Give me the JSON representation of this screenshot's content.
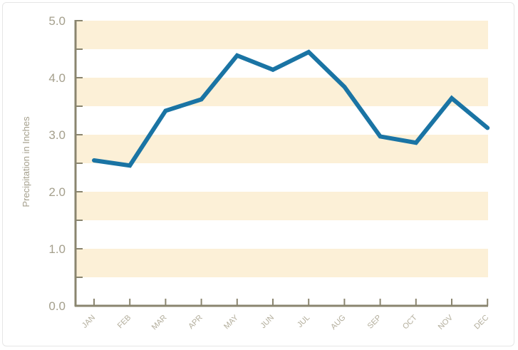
{
  "chart_data": {
    "type": "line",
    "title": "",
    "xlabel": "",
    "ylabel": "Precipitation in Inches",
    "categories": [
      "JAN",
      "FEB",
      "MAR",
      "APR",
      "MAY",
      "JUN",
      "JUL",
      "AUG",
      "SEP",
      "OCT",
      "NOV",
      "DEC"
    ],
    "series": [
      {
        "values": [
          2.55,
          2.46,
          3.42,
          3.62,
          4.39,
          4.14,
          4.45,
          3.84,
          2.97,
          2.86,
          3.64,
          3.12
        ]
      }
    ],
    "ylim": [
      0,
      5
    ],
    "yticks": [
      "0.0",
      "1.0",
      "2.0",
      "3.0",
      "4.0",
      "5.0"
    ],
    "grid": false,
    "band_color": "#fcf0d7",
    "line_color": "#1a74a4",
    "axis_color": "#8a856f"
  }
}
